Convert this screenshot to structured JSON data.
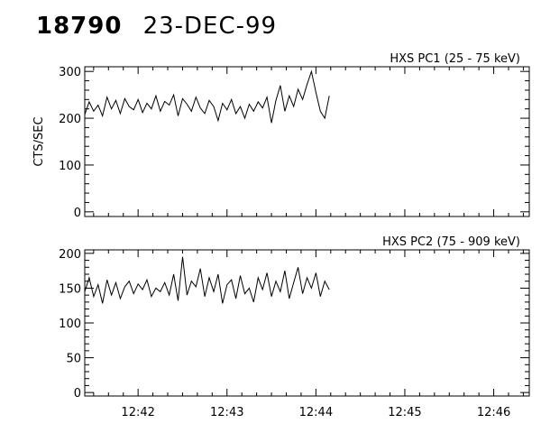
{
  "header": {
    "id": "18790",
    "date": "23-DEC-99"
  },
  "chart_data": [
    {
      "type": "line",
      "title": "HXS PC1 (25 - 75 keV)",
      "ylabel": "CTS/SEC",
      "xlabel": "",
      "ylim": [
        -10,
        310
      ],
      "yticks": [
        0,
        100,
        200,
        300
      ],
      "xlim_min": [
        41.4,
        46.4
      ],
      "xticks": [
        "12:42",
        "12:43",
        "12:44",
        "12:45",
        "12:46"
      ],
      "xtick_min": [
        42,
        43,
        44,
        45,
        46
      ],
      "show_xtick_labels": false,
      "series": [
        {
          "x": [
            41.4,
            41.45,
            41.5,
            41.55,
            41.6,
            41.65,
            41.7,
            41.75,
            41.8,
            41.85,
            41.9,
            41.95,
            42.0,
            42.05,
            42.1,
            42.15,
            42.2,
            42.25,
            42.3,
            42.35,
            42.4,
            42.45,
            42.5,
            42.55,
            42.6,
            42.65,
            42.7,
            42.75,
            42.8,
            42.85,
            42.9,
            42.95,
            43.0,
            43.05,
            43.1,
            43.15,
            43.2,
            43.25,
            43.3,
            43.35,
            43.4,
            43.45,
            43.5,
            43.55,
            43.6,
            43.65,
            43.7,
            43.75,
            43.8,
            43.85,
            43.9,
            43.95,
            44.0,
            44.05,
            44.1,
            44.15
          ],
          "y": [
            208,
            235,
            215,
            228,
            205,
            245,
            220,
            238,
            210,
            242,
            225,
            218,
            240,
            212,
            232,
            220,
            248,
            215,
            236,
            228,
            250,
            205,
            242,
            230,
            215,
            245,
            222,
            210,
            238,
            225,
            195,
            232,
            218,
            240,
            210,
            225,
            200,
            230,
            215,
            235,
            222,
            245,
            190,
            238,
            270,
            215,
            248,
            225,
            262,
            240,
            272,
            300,
            255,
            215,
            200,
            248
          ]
        }
      ]
    },
    {
      "type": "line",
      "title": "HXS PC2 (75 - 909 keV)",
      "ylabel": "",
      "xlabel": "",
      "ylim": [
        -5,
        205
      ],
      "yticks": [
        0,
        50,
        100,
        150,
        200
      ],
      "xlim_min": [
        41.4,
        46.4
      ],
      "xticks": [
        "12:42",
        "12:43",
        "12:44",
        "12:45",
        "12:46"
      ],
      "xtick_min": [
        42,
        43,
        44,
        45,
        46
      ],
      "show_xtick_labels": true,
      "series": [
        {
          "x": [
            41.4,
            41.45,
            41.5,
            41.55,
            41.6,
            41.65,
            41.7,
            41.75,
            41.8,
            41.85,
            41.9,
            41.95,
            42.0,
            42.05,
            42.1,
            42.15,
            42.2,
            42.25,
            42.3,
            42.35,
            42.4,
            42.45,
            42.5,
            42.55,
            42.6,
            42.65,
            42.7,
            42.75,
            42.8,
            42.85,
            42.9,
            42.95,
            43.0,
            43.05,
            43.1,
            43.15,
            43.2,
            43.25,
            43.3,
            43.35,
            43.4,
            43.45,
            43.5,
            43.55,
            43.6,
            43.65,
            43.7,
            43.75,
            43.8,
            43.85,
            43.9,
            43.95,
            44.0,
            44.05,
            44.1,
            44.15
          ],
          "y": [
            145,
            165,
            138,
            155,
            128,
            162,
            140,
            158,
            135,
            152,
            160,
            142,
            156,
            148,
            162,
            138,
            150,
            145,
            158,
            140,
            170,
            132,
            195,
            140,
            160,
            152,
            178,
            138,
            165,
            145,
            170,
            128,
            155,
            162,
            135,
            168,
            142,
            150,
            130,
            165,
            148,
            172,
            138,
            160,
            145,
            175,
            135,
            158,
            180,
            142,
            165,
            150,
            172,
            138,
            160,
            148
          ]
        }
      ]
    }
  ]
}
